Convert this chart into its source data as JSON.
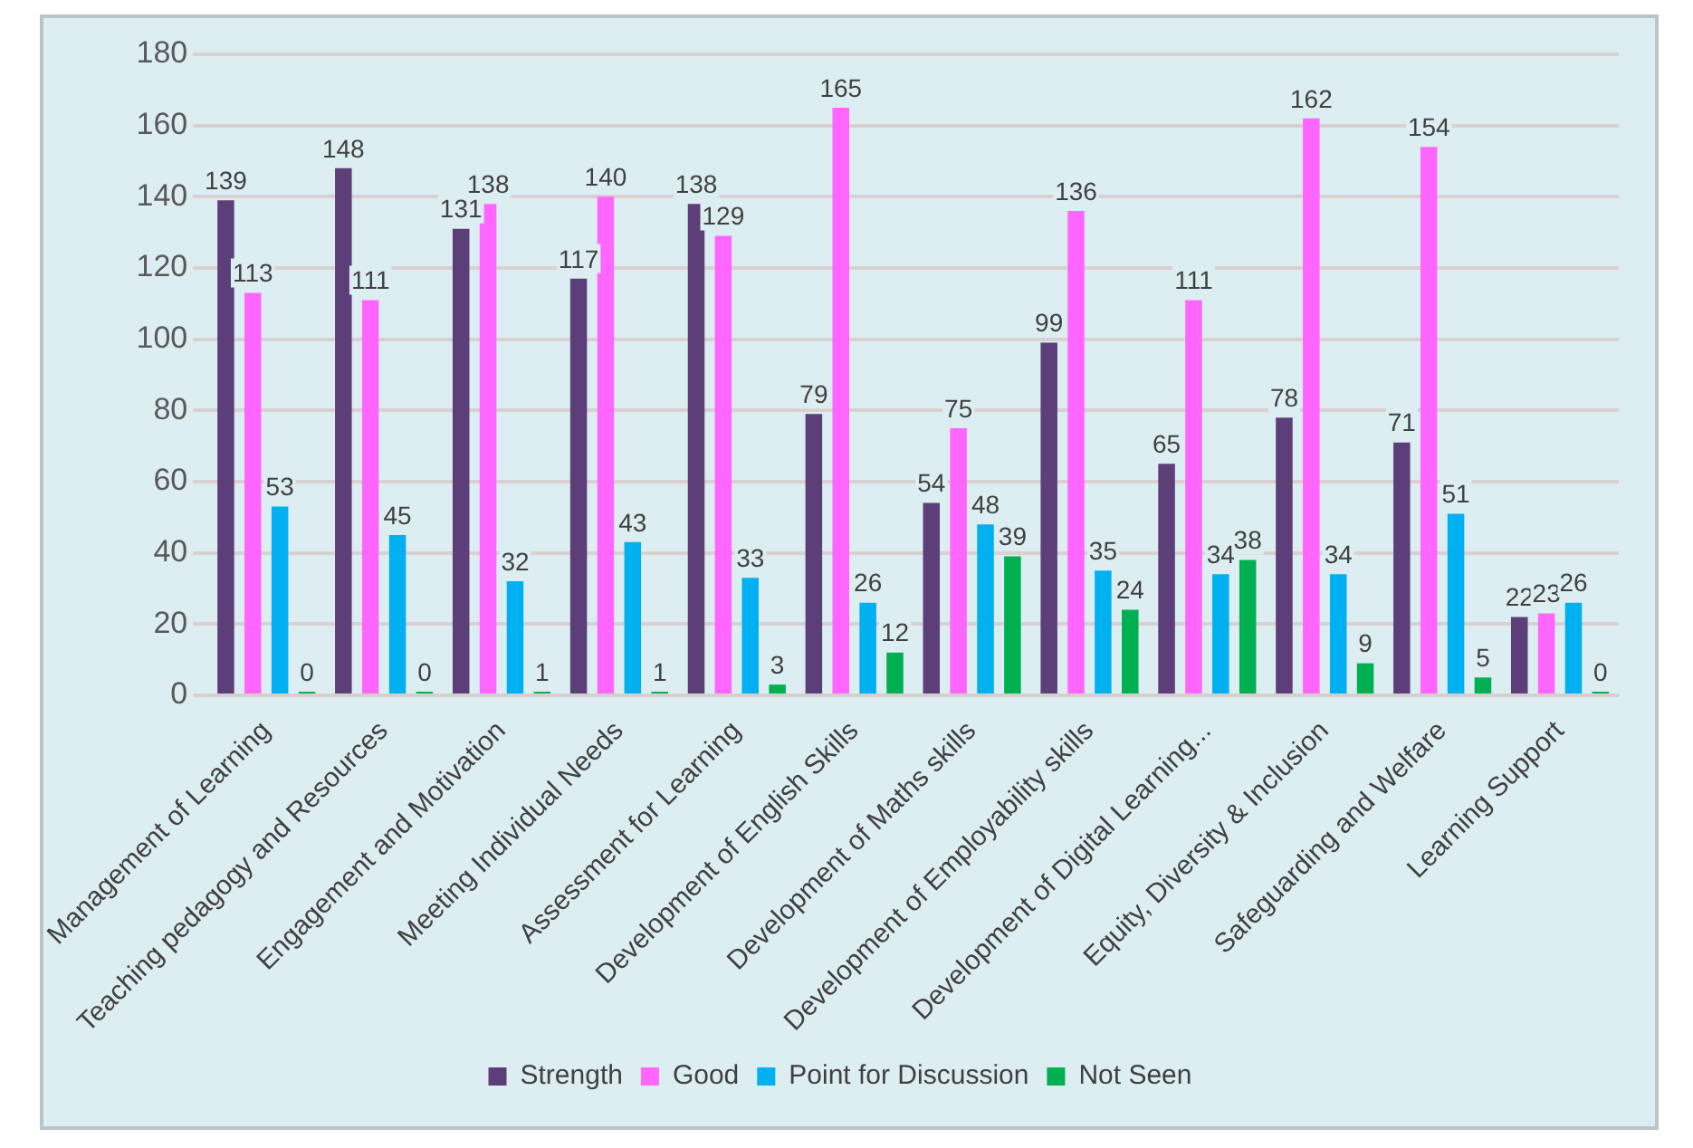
{
  "chart_data": {
    "type": "bar",
    "categories": [
      "Management of Learning",
      "Teaching pedagogy and Resources",
      "Engagement and Motivation",
      "Meeting Individual Needs",
      "Assessment for Learning",
      "Development of English Skills",
      "Development of Maths skills",
      "Development of Employability skills",
      "Development of Digital Learning...",
      "Equity, Diversity & Inclusion",
      "Safeguarding and Welfare",
      "Learning Support"
    ],
    "series": [
      {
        "name": "Strength",
        "color": "#5c3f78",
        "values": [
          139,
          148,
          131,
          117,
          138,
          79,
          54,
          99,
          65,
          78,
          71,
          22
        ]
      },
      {
        "name": "Good",
        "color": "#ff66ff",
        "values": [
          113,
          111,
          138,
          140,
          129,
          165,
          75,
          136,
          111,
          162,
          154,
          23
        ]
      },
      {
        "name": "Point for Discussion",
        "color": "#00b0f0",
        "values": [
          53,
          45,
          32,
          43,
          33,
          26,
          48,
          35,
          34,
          34,
          51,
          26
        ]
      },
      {
        "name": "Not Seen",
        "color": "#00b050",
        "values": [
          0,
          0,
          1,
          1,
          3,
          12,
          39,
          24,
          38,
          9,
          5,
          0
        ]
      }
    ],
    "ylim": [
      0,
      180
    ],
    "yticks": [
      0,
      20,
      40,
      60,
      80,
      100,
      120,
      140,
      160,
      180
    ],
    "grid": "y",
    "legend": "bottom",
    "data_labels": true
  }
}
